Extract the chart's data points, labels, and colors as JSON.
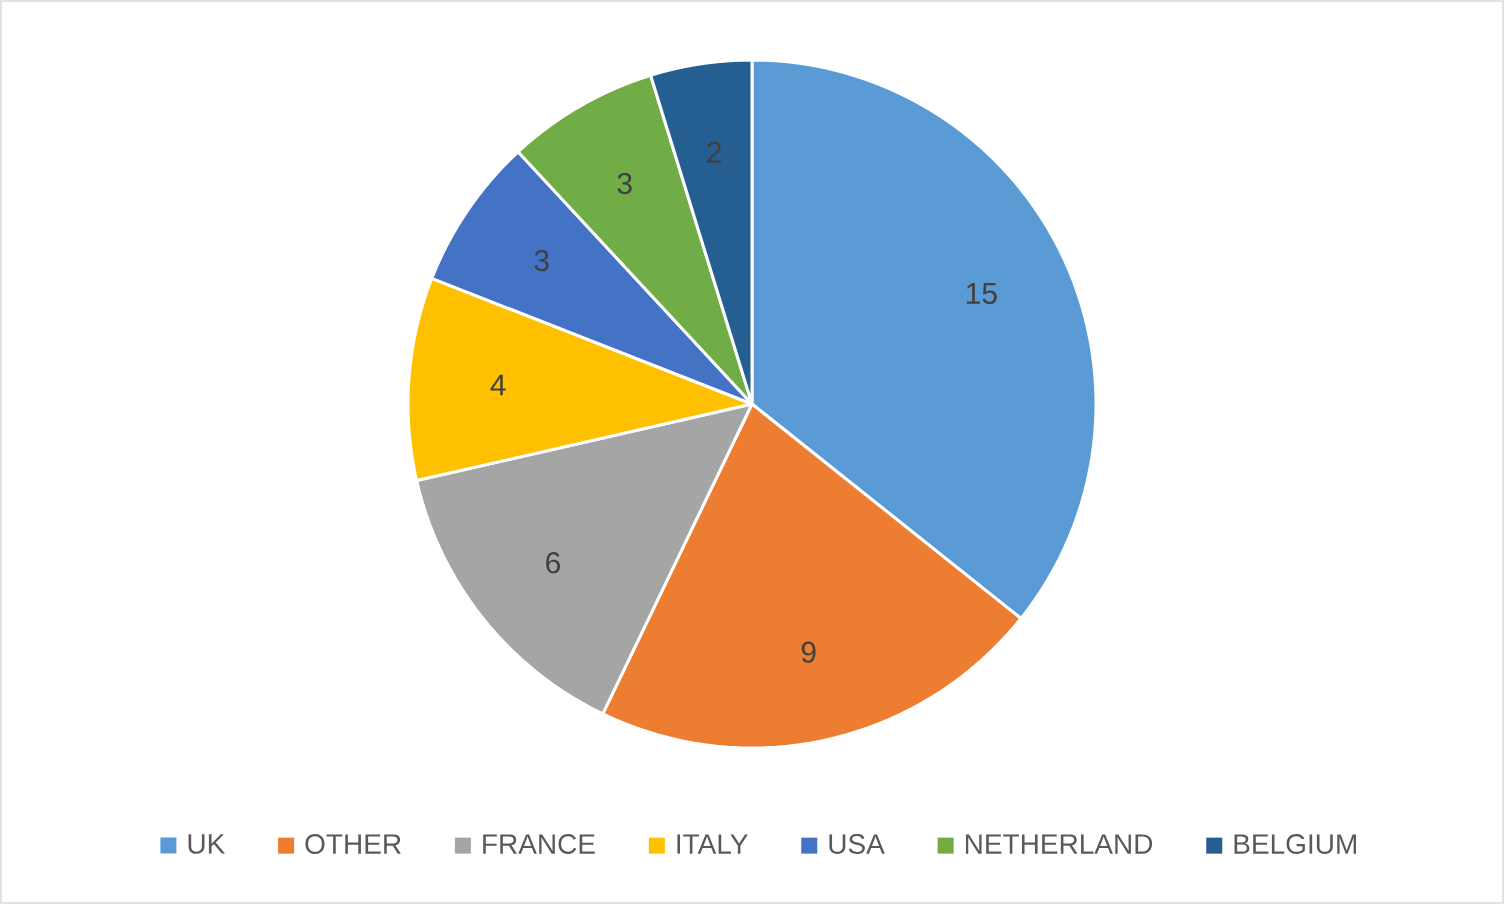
{
  "chart_data": {
    "type": "pie",
    "categories": [
      "UK",
      "OTHER",
      "FRANCE",
      "ITALY",
      "USA",
      "NETHERLAND",
      "BELGIUM"
    ],
    "values": [
      15,
      9,
      6,
      4,
      3,
      3,
      2
    ],
    "colors": [
      "#5b9bd5",
      "#ed7d31",
      "#a5a5a5",
      "#ffc000",
      "#4472c4",
      "#70ad47",
      "#255e91"
    ],
    "data_labels": true,
    "legend": "bottom"
  }
}
